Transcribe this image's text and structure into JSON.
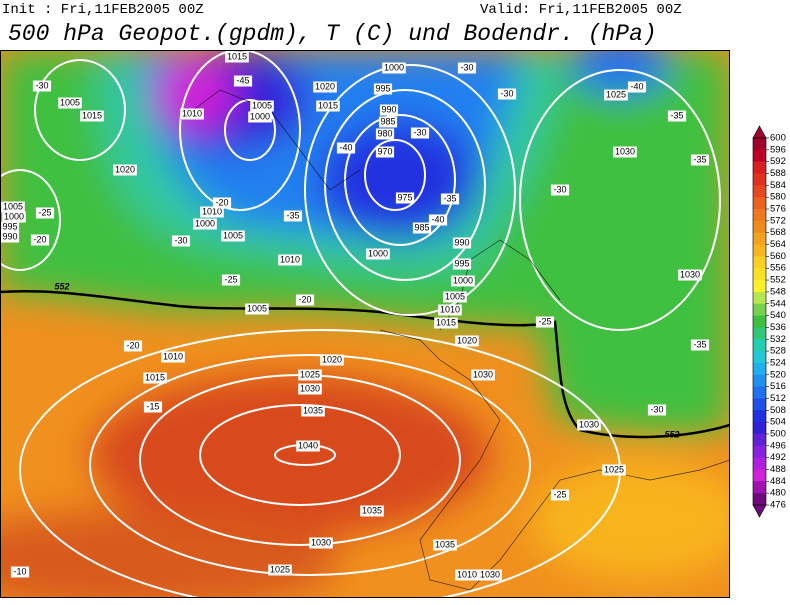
{
  "header": {
    "init": "Init : Fri,11FEB2005 00Z",
    "valid": "Valid: Fri,11FEB2005 00Z",
    "title": "500 hPa Geopot.(gpdm), T (C) und Bodendr. (hPa)"
  },
  "colorbar": {
    "labels": [
      600,
      596,
      592,
      588,
      584,
      580,
      576,
      572,
      568,
      564,
      560,
      556,
      552,
      548,
      544,
      540,
      536,
      532,
      528,
      524,
      520,
      516,
      512,
      508,
      504,
      500,
      496,
      492,
      488,
      484,
      480,
      476
    ],
    "colors": [
      "#a0002a",
      "#c0002a",
      "#d81e1e",
      "#e0301e",
      "#e84820",
      "#ec6020",
      "#f07820",
      "#f08c1e",
      "#f4a020",
      "#f8b41e",
      "#fcd020",
      "#fce024",
      "#fff028",
      "#b8e650",
      "#78d250",
      "#40c040",
      "#30c878",
      "#20d0b0",
      "#20c8d8",
      "#20b0f0",
      "#2090f0",
      "#2070f0",
      "#2050e8",
      "#2030e0",
      "#3020d8",
      "#6020d8",
      "#8820e0",
      "#b020e0",
      "#d020d8",
      "#a010b0",
      "#700880"
    ]
  },
  "map": {
    "isobar_labels": [
      "1005",
      "1015",
      "1020",
      "1010",
      "1005",
      "1000",
      "1015",
      "1020",
      "1015",
      "1000",
      "995",
      "990",
      "985",
      "980",
      "970",
      "975",
      "985",
      "990",
      "995",
      "1000",
      "1000",
      "1005",
      "1010",
      "1015",
      "1020",
      "1030",
      "1010",
      "1005",
      "1010",
      "1015",
      "1020",
      "1025",
      "1030",
      "1035",
      "1040",
      "1035",
      "1030",
      "1035",
      "1010",
      "1030",
      "1025",
      "1030",
      "1025",
      "1030",
      "1030",
      "1025",
      "1000",
      "1005",
      "1010",
      "1005",
      "1000",
      "995",
      "990"
    ],
    "temperature_labels": [
      "-30",
      "-45",
      "-40",
      "-35",
      "-30",
      "-25",
      "-20",
      "-30",
      "-35",
      "-40",
      "-30",
      "-30",
      "-40",
      "-35",
      "-35",
      "-30",
      "-25",
      "-35",
      "-30",
      "-25",
      "-20",
      "-15",
      "-10",
      "-25",
      "-20",
      "-20"
    ],
    "contour_552_labels": [
      "552",
      "552"
    ]
  }
}
